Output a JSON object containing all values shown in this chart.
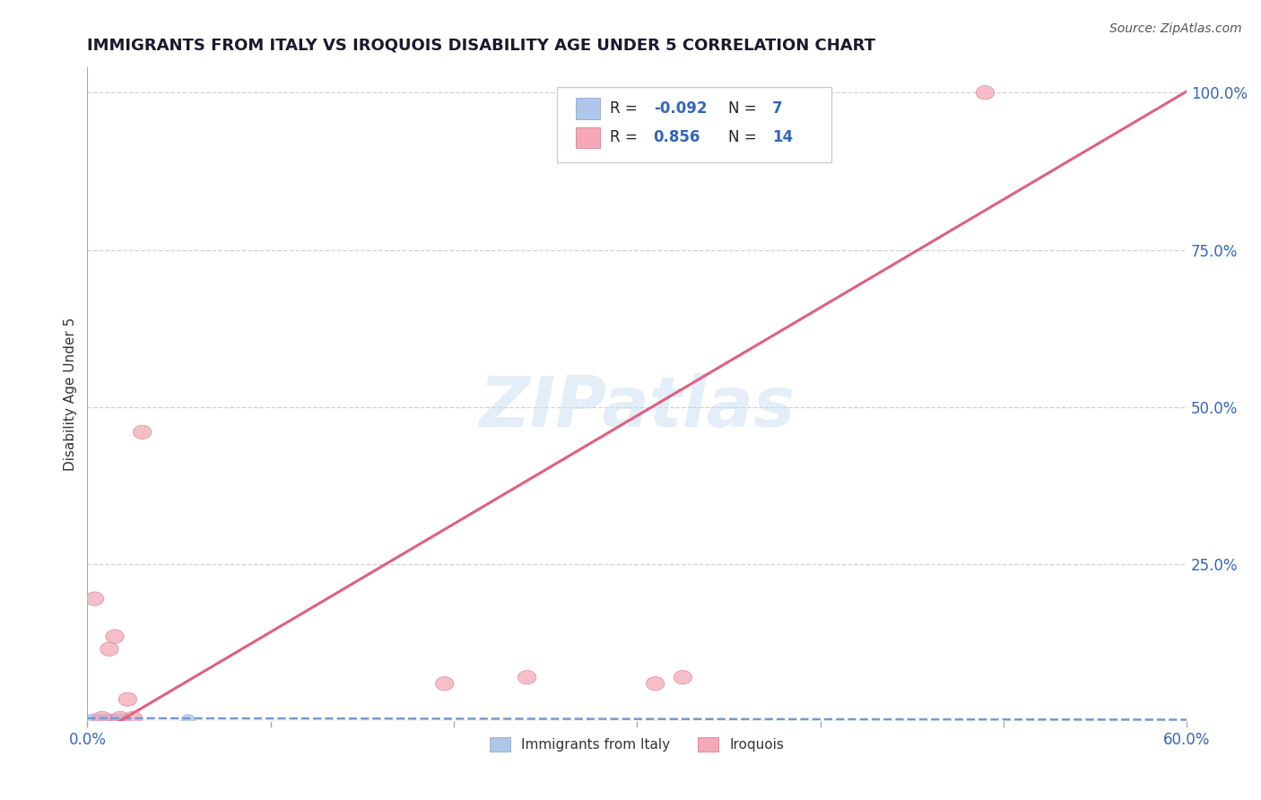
{
  "title": "IMMIGRANTS FROM ITALY VS IROQUOIS DISABILITY AGE UNDER 5 CORRELATION CHART",
  "source": "Source: ZipAtlas.com",
  "ylabel": "Disability Age Under 5",
  "xlim": [
    0.0,
    0.6
  ],
  "ylim": [
    0.0,
    1.04
  ],
  "x_ticks": [
    0.0,
    0.1,
    0.2,
    0.3,
    0.4,
    0.5,
    0.6
  ],
  "x_tick_labels": [
    "0.0%",
    "",
    "",
    "",
    "",
    "",
    "60.0%"
  ],
  "y_ticks_right": [
    0.0,
    0.25,
    0.5,
    0.75,
    1.0
  ],
  "y_tick_labels_right": [
    "",
    "25.0%",
    "50.0%",
    "75.0%",
    "100.0%"
  ],
  "grid_color": "#cccccc",
  "background_color": "#ffffff",
  "watermark": "ZIPatlas",
  "blue_color": "#aec6e8",
  "pink_color": "#f4a8b8",
  "blue_line_color": "#7799cc",
  "pink_line_color": "#e06080",
  "legend_label1": "Immigrants from Italy",
  "legend_label2": "Iroquois",
  "italy_x": [
    0.003,
    0.006,
    0.008,
    0.01,
    0.012,
    0.015,
    0.018,
    0.02,
    0.055
  ],
  "italy_y": [
    0.004,
    0.003,
    0.004,
    0.003,
    0.004,
    0.003,
    0.004,
    0.003,
    0.003
  ],
  "iroquois_x": [
    0.004,
    0.008,
    0.012,
    0.015,
    0.018,
    0.022,
    0.025,
    0.03,
    0.195,
    0.24,
    0.31,
    0.325,
    0.49
  ],
  "iroquois_y": [
    0.195,
    0.005,
    0.115,
    0.135,
    0.005,
    0.035,
    0.005,
    0.46,
    0.06,
    0.07,
    0.06,
    0.07,
    1.0
  ],
  "italy_reg_slope": -0.004,
  "italy_reg_intercept": 0.005,
  "iroquois_reg_slope": 1.72,
  "iroquois_reg_intercept": -0.03
}
